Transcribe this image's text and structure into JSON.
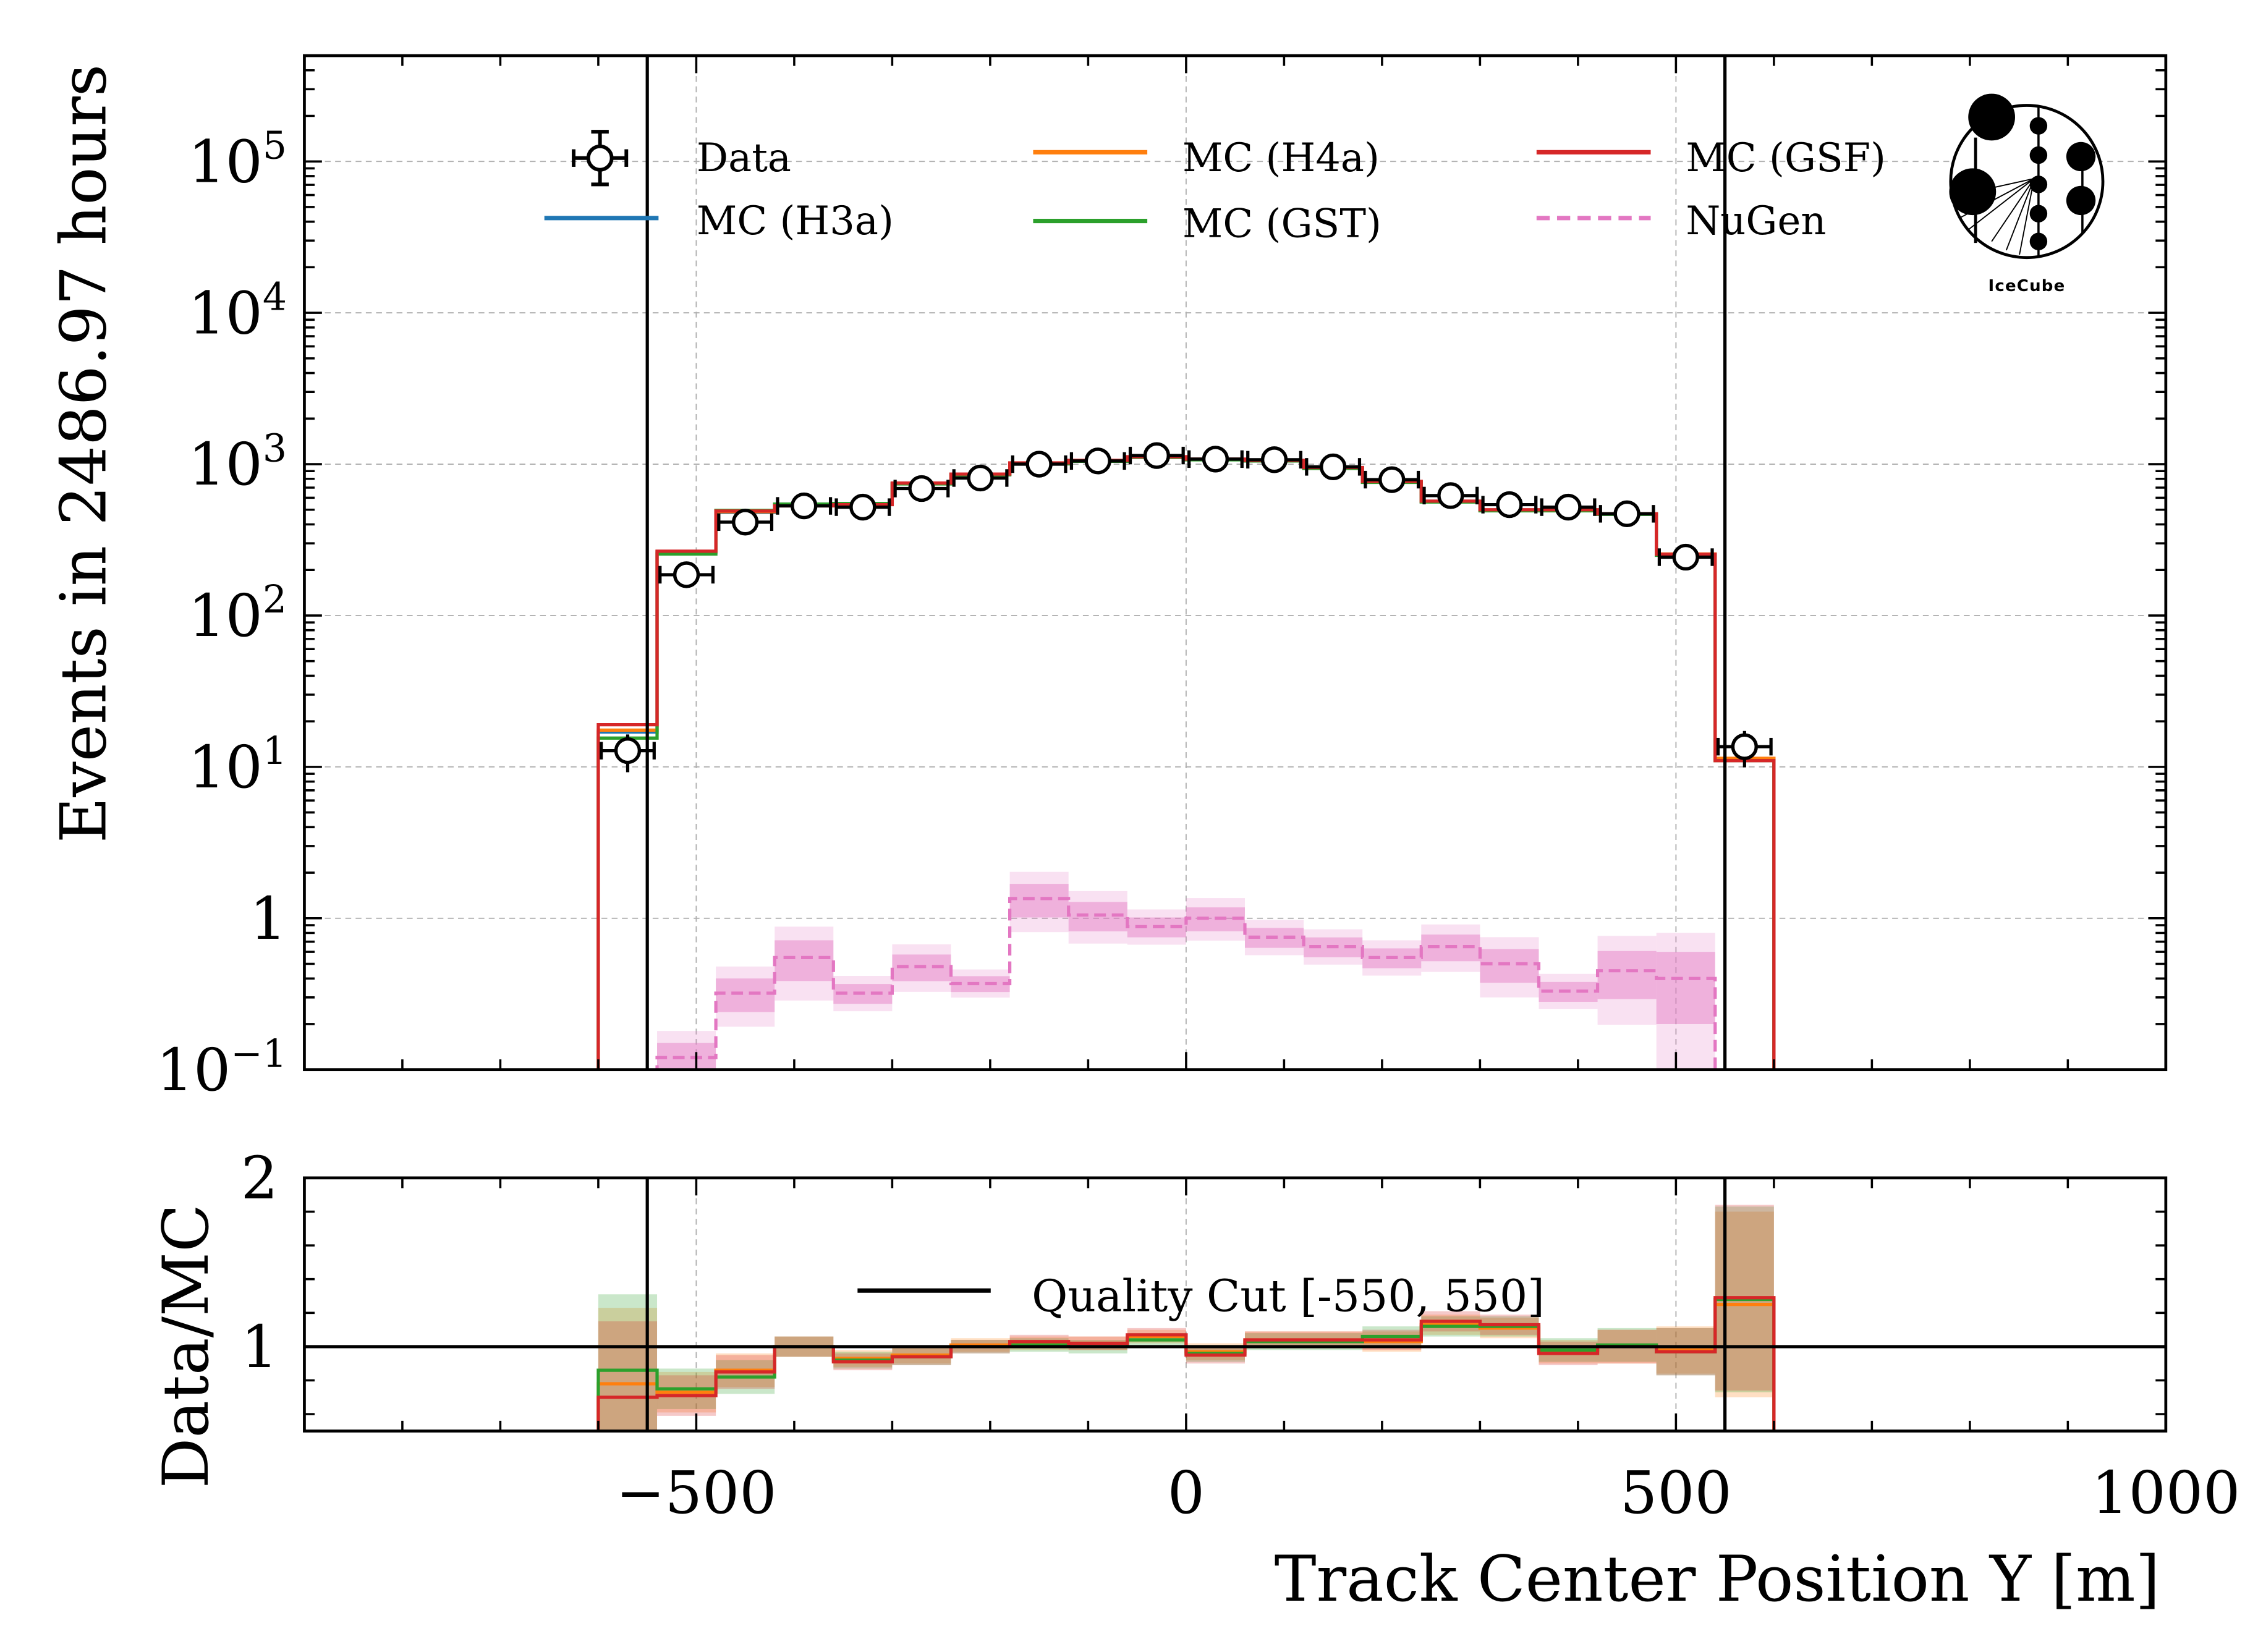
{
  "chart_data": [
    {
      "panel": "main",
      "type": "line",
      "style": "step histogram with data points",
      "xlabel": "Track Center Position Y [m]",
      "ylabel": "Events in 2486.97 hours",
      "xlim": [
        -900,
        1000
      ],
      "ylim": [
        0.1,
        500000
      ],
      "yscale": "log",
      "grid": true,
      "xticks": [
        -500,
        0,
        500,
        1000
      ],
      "xtick_labels": [
        "−500",
        "0",
        "500",
        "1000"
      ],
      "yticks": [
        0.1,
        1,
        10,
        100,
        1000,
        10000,
        100000
      ],
      "ytick_labels": [
        {
          "base": "10",
          "exp": "−1"
        },
        {
          "base": "1",
          "exp": ""
        },
        {
          "base": "10",
          "exp": "1"
        },
        {
          "base": "10",
          "exp": "2"
        },
        {
          "base": "10",
          "exp": "3"
        },
        {
          "base": "10",
          "exp": "4"
        },
        {
          "base": "10",
          "exp": "5"
        }
      ],
      "bin_edges": [
        -600,
        -540,
        -480,
        -420,
        -360,
        -300,
        -240,
        -180,
        -120,
        -60,
        0,
        60,
        120,
        180,
        240,
        300,
        360,
        420,
        480,
        540,
        600
      ],
      "series": [
        {
          "name": "Data",
          "kind": "points",
          "color": "#000000",
          "values": [
            12.8,
            186,
            414,
            530,
            520,
            690,
            810,
            1000,
            1050,
            1140,
            1080,
            1070,
            960,
            790,
            620,
            540,
            520,
            470,
            243,
            13.6
          ],
          "yerr_rel": [
            0.28,
            0.07,
            0.05,
            0.04,
            0.04,
            0.04,
            0.035,
            0.03,
            0.03,
            0.03,
            0.03,
            0.03,
            0.03,
            0.035,
            0.04,
            0.04,
            0.04,
            0.045,
            0.065,
            0.27
          ]
        },
        {
          "name": "MC (H3a)",
          "kind": "step",
          "color": "#1f77b4",
          "values": [
            17,
            262,
            480,
            535,
            545,
            745,
            855,
            1010,
            1050,
            1110,
            1070,
            1050,
            940,
            760,
            565,
            495,
            495,
            468,
            252,
            11.2
          ]
        },
        {
          "name": "MC (H4a)",
          "kind": "step",
          "color": "#ff7f0e",
          "values": [
            17.5,
            265,
            485,
            537,
            548,
            748,
            858,
            1015,
            1055,
            1115,
            1075,
            1055,
            945,
            765,
            568,
            498,
            498,
            470,
            255,
            11.4
          ]
        },
        {
          "name": "MC (GST)",
          "kind": "step",
          "color": "#2ca02c",
          "values": [
            15.5,
            255,
            495,
            545,
            550,
            740,
            850,
            1005,
            1045,
            1108,
            1068,
            1050,
            938,
            758,
            562,
            492,
            492,
            466,
            250,
            11.0
          ]
        },
        {
          "name": "MC (GSF)",
          "kind": "step",
          "color": "#d62728",
          "values": [
            19,
            266,
            490,
            530,
            540,
            750,
            860,
            1020,
            1060,
            1120,
            1080,
            1060,
            950,
            770,
            570,
            500,
            500,
            470,
            254,
            11.0
          ]
        },
        {
          "name": "NuGen",
          "kind": "dashed-step-band",
          "color": "#e377c2",
          "bin_edges": [
            -540,
            -480,
            -420,
            -360,
            -300,
            -240,
            -180,
            -120,
            -60,
            0,
            60,
            120,
            180,
            240,
            300,
            360,
            420,
            480,
            540
          ],
          "values": [
            0.12,
            0.32,
            0.55,
            0.32,
            0.48,
            0.37,
            1.35,
            1.05,
            0.88,
            1.0,
            0.75,
            0.65,
            0.55,
            0.65,
            0.5,
            0.33,
            0.45,
            0.4
          ],
          "band_rel": [
            0.25,
            0.25,
            0.3,
            0.15,
            0.2,
            0.12,
            0.25,
            0.22,
            0.15,
            0.18,
            0.15,
            0.15,
            0.15,
            0.2,
            0.25,
            0.15,
            0.35,
            0.5
          ]
        }
      ],
      "vlines": [
        {
          "x": -550,
          "color": "#000000"
        },
        {
          "x": 550,
          "color": "#000000"
        }
      ],
      "legend": {
        "placement": "top",
        "columns": 3,
        "entries": [
          "Data",
          "MC (H3a)",
          "MC (H4a)",
          "MC (GST)",
          "MC (GSF)",
          "NuGen"
        ]
      },
      "logo": "IceCube"
    },
    {
      "panel": "ratio",
      "type": "line",
      "style": "step ratio with uncertainty bands",
      "xlabel": "Track Center Position Y [m]",
      "ylabel": "Data/MC",
      "xlim": [
        -900,
        1000
      ],
      "ylim": [
        0.5,
        2
      ],
      "yticks": [
        1,
        2
      ],
      "ytick_labels": [
        "1",
        "2"
      ],
      "bin_edges": [
        -600,
        -540,
        -480,
        -420,
        -360,
        -300,
        -240,
        -180,
        -120,
        -60,
        0,
        60,
        120,
        180,
        240,
        300,
        360,
        420,
        480,
        540,
        600
      ],
      "series": [
        {
          "name": "MC (H4a)",
          "color": "#ff7f0e",
          "values": [
            0.78,
            0.73,
            0.86,
            1.0,
            0.93,
            0.95,
            1.01,
            1.02,
            1.02,
            1.06,
            0.97,
            1.04,
            1.04,
            1.03,
            1.13,
            1.11,
            0.97,
            1.0,
            0.98,
            1.25
          ]
        },
        {
          "name": "MC (GST)",
          "color": "#2ca02c",
          "values": [
            0.86,
            0.75,
            0.82,
            1.0,
            0.92,
            0.94,
            1.0,
            1.01,
            1.0,
            1.04,
            0.96,
            1.03,
            1.03,
            1.06,
            1.12,
            1.12,
            0.98,
            1.01,
            0.97,
            1.28
          ]
        },
        {
          "name": "MC (GSF)",
          "color": "#d62728",
          "values": [
            0.7,
            0.71,
            0.85,
            1.0,
            0.91,
            0.94,
            1.0,
            1.03,
            1.02,
            1.07,
            0.95,
            1.04,
            1.04,
            1.04,
            1.15,
            1.13,
            0.96,
            1.0,
            0.97,
            1.29
          ]
        }
      ],
      "band_halfwidth": [
        0.45,
        0.12,
        0.1,
        0.06,
        0.05,
        0.05,
        0.04,
        0.04,
        0.04,
        0.04,
        0.05,
        0.05,
        0.05,
        0.06,
        0.06,
        0.06,
        0.07,
        0.1,
        0.14,
        0.55
      ],
      "hline": {
        "y": 1,
        "color": "#000000"
      },
      "vlines": [
        {
          "x": -550
        },
        {
          "x": 550
        }
      ],
      "legend": {
        "placement": "center",
        "entries": [
          "Quality Cut [-550, 550]"
        ]
      }
    }
  ],
  "labels": {
    "ylabel_main": "Events in 2486.97 hours",
    "ylabel_ratio": "Data/MC",
    "xlabel": "Track Center Position Y [m]",
    "legend": {
      "data": "Data",
      "h3a": "MC (H3a)",
      "h4a": "MC (H4a)",
      "gst": "MC (GST)",
      "gsf": "MC (GSF)",
      "nugen": "NuGen",
      "quality_cut": "Quality Cut [-550, 550]"
    },
    "logo": "IceCube"
  }
}
